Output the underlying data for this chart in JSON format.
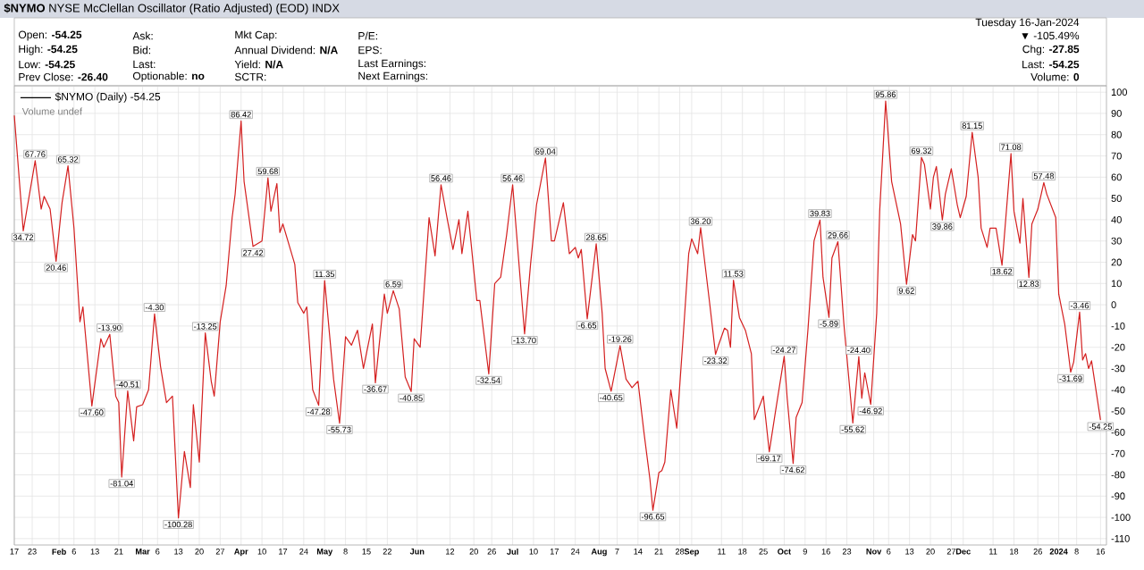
{
  "chart_data": {
    "type": "line",
    "title": "**$NYMO** NYSE McClellan Oscillator (Ratio Adjusted) (EOD) INDX",
    "series": [
      {
        "name": "$NYMO (Daily) -54.25",
        "color": "#d42020",
        "x": [
          "2023-01-17",
          "2023-01-20",
          "2023-01-24",
          "2023-01-26",
          "2023-01-27",
          "2023-01-29",
          "2023-01-31",
          "2023-02-02",
          "2023-02-04",
          "2023-02-06",
          "2023-02-08",
          "2023-02-09",
          "2023-02-12",
          "2023-02-15",
          "2023-02-16",
          "2023-02-18",
          "2023-02-20",
          "2023-02-21",
          "2023-02-22",
          "2023-02-24",
          "2023-02-26",
          "2023-02-27",
          "2023-03-01",
          "2023-03-03",
          "2023-03-05",
          "2023-03-07",
          "2023-03-09",
          "2023-03-11",
          "2023-03-13",
          "2023-03-15",
          "2023-03-17",
          "2023-03-18",
          "2023-03-20",
          "2023-03-22",
          "2023-03-24",
          "2023-03-25",
          "2023-03-27",
          "2023-03-29",
          "2023-03-31",
          "2023-04-01",
          "2023-04-03",
          "2023-04-04",
          "2023-04-07",
          "2023-04-10",
          "2023-04-12",
          "2023-04-13",
          "2023-04-15",
          "2023-04-16",
          "2023-04-17",
          "2023-04-21",
          "2023-04-22",
          "2023-04-24",
          "2023-04-25",
          "2023-04-27",
          "2023-04-29",
          "2023-05-01",
          "2023-05-04",
          "2023-05-06",
          "2023-05-08",
          "2023-05-10",
          "2023-05-12",
          "2023-05-14",
          "2023-05-17",
          "2023-05-18",
          "2023-05-21",
          "2023-05-22",
          "2023-05-24",
          "2023-05-26",
          "2023-05-28",
          "2023-05-30",
          "2023-05-31",
          "2023-06-02",
          "2023-06-05",
          "2023-06-07",
          "2023-06-09",
          "2023-06-11",
          "2023-06-13",
          "2023-06-15",
          "2023-06-16",
          "2023-06-18",
          "2023-06-21",
          "2023-06-22",
          "2023-06-25",
          "2023-06-27",
          "2023-06-29",
          "2023-07-01",
          "2023-07-03",
          "2023-07-07",
          "2023-07-09",
          "2023-07-11",
          "2023-07-14",
          "2023-07-16",
          "2023-07-17",
          "2023-07-20",
          "2023-07-22",
          "2023-07-24",
          "2023-07-25",
          "2023-07-26",
          "2023-07-28",
          "2023-07-31",
          "2023-08-02",
          "2023-08-03",
          "2023-08-05",
          "2023-08-08",
          "2023-08-10",
          "2023-08-12",
          "2023-08-14",
          "2023-08-16",
          "2023-08-18",
          "2023-08-19",
          "2023-08-21",
          "2023-08-22",
          "2023-08-23",
          "2023-08-25",
          "2023-08-27",
          "2023-08-29",
          "2023-08-31",
          "2023-09-01",
          "2023-09-03",
          "2023-09-04",
          "2023-09-07",
          "2023-09-09",
          "2023-09-10",
          "2023-09-12",
          "2023-09-13",
          "2023-09-14",
          "2023-09-15",
          "2023-09-17",
          "2023-09-19",
          "2023-09-21",
          "2023-09-22",
          "2023-09-25",
          "2023-09-27",
          "2023-09-29",
          "2023-10-02",
          "2023-10-03",
          "2023-10-05",
          "2023-10-06",
          "2023-10-08",
          "2023-10-10",
          "2023-10-12",
          "2023-10-14",
          "2023-10-15",
          "2023-10-17",
          "2023-10-18",
          "2023-10-20",
          "2023-10-22",
          "2023-10-24",
          "2023-10-25",
          "2023-10-27",
          "2023-10-28",
          "2023-10-29",
          "2023-10-31",
          "2023-11-02",
          "2023-11-03",
          "2023-11-05",
          "2023-11-07",
          "2023-11-10",
          "2023-11-12",
          "2023-11-14",
          "2023-11-15",
          "2023-11-17",
          "2023-11-18",
          "2023-11-20",
          "2023-11-21",
          "2023-11-22",
          "2023-11-24",
          "2023-11-25",
          "2023-11-27",
          "2023-11-29",
          "2023-11-30",
          "2023-12-02",
          "2023-12-04",
          "2023-12-06",
          "2023-12-07",
          "2023-12-09",
          "2023-12-10",
          "2023-12-12",
          "2023-12-14",
          "2023-12-17",
          "2023-12-18",
          "2023-12-20",
          "2023-12-21",
          "2023-12-23",
          "2023-12-24",
          "2023-12-26",
          "2023-12-28",
          "2023-12-29",
          "2024-01-01",
          "2024-01-02",
          "2024-01-04",
          "2024-01-06",
          "2024-01-07",
          "2024-01-09",
          "2024-01-10",
          "2024-01-11",
          "2024-01-12",
          "2024-01-13",
          "2024-01-16"
        ],
        "values": [
          89,
          34.72,
          67.76,
          45,
          51,
          45,
          20.46,
          48,
          65.32,
          36,
          -8,
          -1,
          -47.6,
          -16,
          -20,
          -13.9,
          -43,
          -46,
          -81.04,
          -40.51,
          -64,
          -48,
          -47,
          -40,
          -4.3,
          -29,
          -46,
          -43,
          -100.28,
          -69,
          -86,
          -47,
          -74,
          -13.25,
          -36,
          -43,
          -8,
          9,
          41,
          52,
          86.42,
          58,
          27.42,
          30,
          59.68,
          44,
          57,
          34,
          38,
          19,
          1,
          -4,
          -1,
          -40,
          -47.28,
          11.35,
          -35,
          -55.73,
          -15,
          -19,
          -12,
          -30,
          -9,
          -36.67,
          5,
          -4,
          6.59,
          -2,
          -34,
          -40.85,
          -16,
          -20,
          41,
          23,
          56.46,
          41,
          26,
          40,
          24,
          44,
          2,
          2,
          -32.54,
          10,
          13,
          33,
          56.46,
          -13.7,
          19,
          47,
          69.04,
          30,
          30,
          48,
          24,
          27,
          22,
          26,
          -6.65,
          28.65,
          -4,
          -30,
          -40.65,
          -19.26,
          -35,
          -39,
          -36,
          -60,
          -82,
          -96.65,
          -79,
          -78,
          -74,
          -40,
          -58,
          -18,
          24,
          31,
          24,
          36.2,
          1,
          -23.32,
          -19,
          -11,
          -12,
          -20,
          11.53,
          -6,
          -12,
          -23,
          -54,
          -43,
          -69.17,
          -51,
          -24.27,
          -44,
          -74.62,
          -53,
          -46,
          -11,
          30,
          39.83,
          13,
          -5.89,
          22,
          29.66,
          -9,
          -40,
          -55.62,
          -24.4,
          -44,
          -32,
          -46.92,
          -4,
          44,
          95.86,
          58,
          38,
          9.62,
          33,
          30,
          69.32,
          66,
          45,
          60,
          65,
          39.86,
          52,
          64,
          47,
          41,
          51,
          81.15,
          60,
          36,
          27,
          36,
          36,
          18.62,
          71.08,
          44,
          29,
          50,
          12.83,
          38,
          45,
          57.48,
          52,
          41,
          5,
          -9,
          -31.69,
          -27,
          -3.46,
          -26,
          -23,
          -30,
          -26.4,
          -54.25
        ]
      }
    ],
    "xlim": [
      "2023-01-17",
      "2024-01-18"
    ],
    "ylim": [
      -113,
      103
    ],
    "xticks": [
      {
        "value": "2023-01-17",
        "label": "17"
      },
      {
        "value": "2023-01-23",
        "label": "23"
      },
      {
        "value": "2023-02-01",
        "label": "Feb"
      },
      {
        "value": "2023-02-06",
        "label": "6"
      },
      {
        "value": "2023-02-13",
        "label": "13"
      },
      {
        "value": "2023-02-21",
        "label": "21"
      },
      {
        "value": "2023-03-01",
        "label": "Mar"
      },
      {
        "value": "2023-03-06",
        "label": "6"
      },
      {
        "value": "2023-03-13",
        "label": "13"
      },
      {
        "value": "2023-03-20",
        "label": "20"
      },
      {
        "value": "2023-03-27",
        "label": "27"
      },
      {
        "value": "2023-04-03",
        "label": "Apr"
      },
      {
        "value": "2023-04-10",
        "label": "10"
      },
      {
        "value": "2023-04-17",
        "label": "17"
      },
      {
        "value": "2023-04-24",
        "label": "24"
      },
      {
        "value": "2023-05-01",
        "label": "May"
      },
      {
        "value": "2023-05-08",
        "label": "8"
      },
      {
        "value": "2023-05-15",
        "label": "15"
      },
      {
        "value": "2023-05-22",
        "label": "22"
      },
      {
        "value": "2023-06-01",
        "label": "Jun"
      },
      {
        "value": "2023-06-12",
        "label": "12"
      },
      {
        "value": "2023-06-20",
        "label": "20"
      },
      {
        "value": "2023-06-26",
        "label": "26"
      },
      {
        "value": "2023-07-03",
        "label": "Jul"
      },
      {
        "value": "2023-07-10",
        "label": "10"
      },
      {
        "value": "2023-07-17",
        "label": "17"
      },
      {
        "value": "2023-07-24",
        "label": "24"
      },
      {
        "value": "2023-08-01",
        "label": "Aug"
      },
      {
        "value": "2023-08-07",
        "label": "7"
      },
      {
        "value": "2023-08-14",
        "label": "14"
      },
      {
        "value": "2023-08-21",
        "label": "21"
      },
      {
        "value": "2023-08-28",
        "label": "28"
      },
      {
        "value": "2023-09-01",
        "label": "Sep"
      },
      {
        "value": "2023-09-11",
        "label": "11"
      },
      {
        "value": "2023-09-18",
        "label": "18"
      },
      {
        "value": "2023-09-25",
        "label": "25"
      },
      {
        "value": "2023-10-02",
        "label": "Oct"
      },
      {
        "value": "2023-10-09",
        "label": "9"
      },
      {
        "value": "2023-10-16",
        "label": "16"
      },
      {
        "value": "2023-10-23",
        "label": "23"
      },
      {
        "value": "2023-11-01",
        "label": "Nov"
      },
      {
        "value": "2023-11-06",
        "label": "6"
      },
      {
        "value": "2023-11-13",
        "label": "13"
      },
      {
        "value": "2023-11-20",
        "label": "20"
      },
      {
        "value": "2023-11-27",
        "label": "27"
      },
      {
        "value": "2023-12-01",
        "label": "Dec"
      },
      {
        "value": "2023-12-11",
        "label": "11"
      },
      {
        "value": "2023-12-18",
        "label": "18"
      },
      {
        "value": "2023-12-26",
        "label": "26"
      },
      {
        "value": "2024-01-02",
        "label": "2024"
      },
      {
        "value": "2024-01-08",
        "label": "8"
      },
      {
        "value": "2024-01-16",
        "label": "16"
      }
    ],
    "yticks": [
      -110,
      -100,
      -90,
      -80,
      -70,
      -60,
      -50,
      -40,
      -30,
      -20,
      -10,
      0,
      10,
      20,
      30,
      40,
      50,
      60,
      70,
      80,
      90,
      100
    ],
    "grid": true,
    "legend": "top left",
    "annotations": [
      "Open: **-54.25**",
      "High: **-54.25**",
      "Low: **-54.25**",
      "Prev Close: **-26.40**",
      "Ask:",
      "Bid:",
      "Last:",
      "Optionable: **no**",
      "Mkt Cap:",
      "Annual Dividend: **N/A**",
      "Yield: **N/A**",
      "SCTR:",
      "P/E:",
      "EPS:",
      "Last Earnings:",
      "Next Earnings:",
      "Tuesday 16-Jan-2024",
      "▼ -105.49%",
      "Chg: **-27.85**",
      "Last: **-54.25**",
      "Volume: **0**",
      "Volume undef",
      {
        "text": "34.72",
        "x": "2023-01-20",
        "y": 34.72
      },
      {
        "text": "67.76",
        "x": "2023-01-24",
        "y": 67.76
      },
      {
        "text": "20.46",
        "x": "2023-01-31",
        "y": 20.46
      },
      {
        "text": "65.32",
        "x": "2023-02-04",
        "y": 65.32
      },
      {
        "text": "-47.60",
        "x": "2023-02-12",
        "y": -47.6
      },
      {
        "text": "-13.90",
        "x": "2023-02-18",
        "y": -13.9
      },
      {
        "text": "-81.04",
        "x": "2023-02-22",
        "y": -81.04
      },
      {
        "text": "-40.51",
        "x": "2023-02-24",
        "y": -40.51
      },
      {
        "text": "-4.30",
        "x": "2023-03-05",
        "y": -4.3
      },
      {
        "text": "-100.28",
        "x": "2023-03-13",
        "y": -100.28
      },
      {
        "text": "-13.25",
        "x": "2023-03-22",
        "y": -13.25
      },
      {
        "text": "86.42",
        "x": "2023-04-03",
        "y": 86.42
      },
      {
        "text": "27.42",
        "x": "2023-04-07",
        "y": 27.42
      },
      {
        "text": "59.68",
        "x": "2023-04-12",
        "y": 59.68
      },
      {
        "text": "-47.28",
        "x": "2023-04-29",
        "y": -47.28
      },
      {
        "text": "11.35",
        "x": "2023-05-01",
        "y": 11.35
      },
      {
        "text": "-55.73",
        "x": "2023-05-06",
        "y": -55.73
      },
      {
        "text": "-36.67",
        "x": "2023-05-18",
        "y": -36.67
      },
      {
        "text": "6.59",
        "x": "2023-05-24",
        "y": 6.59
      },
      {
        "text": "-40.85",
        "x": "2023-05-30",
        "y": -40.85
      },
      {
        "text": "56.46",
        "x": "2023-06-09",
        "y": 56.46
      },
      {
        "text": "-32.54",
        "x": "2023-06-25",
        "y": -32.54
      },
      {
        "text": "56.46",
        "x": "2023-07-03",
        "y": 56.46
      },
      {
        "text": "-13.70",
        "x": "2023-07-07",
        "y": -13.7
      },
      {
        "text": "69.04",
        "x": "2023-07-14",
        "y": 69.04
      },
      {
        "text": "-6.65",
        "x": "2023-07-28",
        "y": -6.65
      },
      {
        "text": "28.65",
        "x": "2023-07-31",
        "y": 28.65
      },
      {
        "text": "-40.65",
        "x": "2023-08-05",
        "y": -40.65
      },
      {
        "text": "-19.26",
        "x": "2023-08-08",
        "y": -19.26
      },
      {
        "text": "-96.65",
        "x": "2023-08-19",
        "y": -96.65
      },
      {
        "text": "36.20",
        "x": "2023-09-04",
        "y": 36.2
      },
      {
        "text": "-23.32",
        "x": "2023-09-09",
        "y": -23.32
      },
      {
        "text": "11.53",
        "x": "2023-09-15",
        "y": 11.53
      },
      {
        "text": "-69.17",
        "x": "2023-09-27",
        "y": -69.17
      },
      {
        "text": "-24.27",
        "x": "2023-10-02",
        "y": -24.27
      },
      {
        "text": "-74.62",
        "x": "2023-10-05",
        "y": -74.62
      },
      {
        "text": "39.83",
        "x": "2023-10-14",
        "y": 39.83
      },
      {
        "text": "-5.89",
        "x": "2023-10-17",
        "y": -5.89
      },
      {
        "text": "29.66",
        "x": "2023-10-20",
        "y": 29.66
      },
      {
        "text": "-55.62",
        "x": "2023-10-25",
        "y": -55.62
      },
      {
        "text": "-24.40",
        "x": "2023-10-27",
        "y": -24.4
      },
      {
        "text": "-46.92",
        "x": "2023-10-31",
        "y": -46.92
      },
      {
        "text": "95.86",
        "x": "2023-11-05",
        "y": 95.86
      },
      {
        "text": "9.62",
        "x": "2023-11-12",
        "y": 9.62
      },
      {
        "text": "69.32",
        "x": "2023-11-17",
        "y": 69.32
      },
      {
        "text": "39.86",
        "x": "2023-11-24",
        "y": 39.86
      },
      {
        "text": "81.15",
        "x": "2023-12-04",
        "y": 81.15
      },
      {
        "text": "18.62",
        "x": "2023-12-14",
        "y": 18.62
      },
      {
        "text": "71.08",
        "x": "2023-12-17",
        "y": 71.08
      },
      {
        "text": "12.83",
        "x": "2023-12-23",
        "y": 12.83
      },
      {
        "text": "57.48",
        "x": "2023-12-28",
        "y": 57.48
      },
      {
        "text": "-31.69",
        "x": "2024-01-06",
        "y": -31.69
      },
      {
        "text": "-3.46",
        "x": "2024-01-09",
        "y": -3.46
      },
      {
        "text": "-54.25",
        "x": "2024-01-16",
        "y": -54.25
      }
    ]
  }
}
